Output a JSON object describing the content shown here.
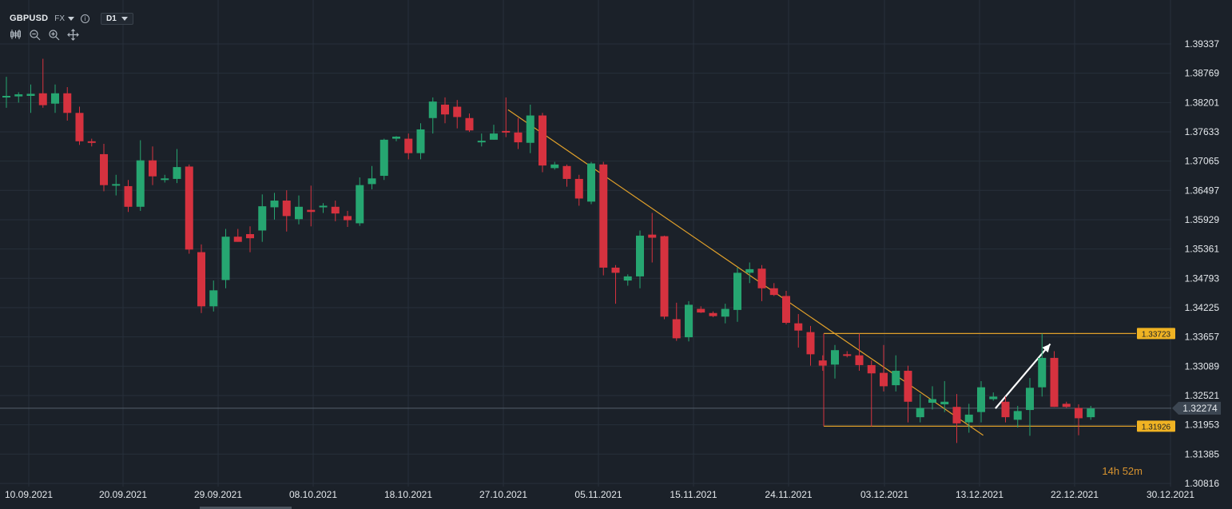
{
  "header": {
    "symbol": "GBPUSD",
    "market": "FX",
    "info_icon": "info-icon",
    "timeframe": "D1"
  },
  "toolbar_icons": [
    "candles-icon",
    "zoom-out-icon",
    "zoom-in-icon",
    "crosshair-icon"
  ],
  "countdown": {
    "hours": "14h",
    "minutes": "52m"
  },
  "colors": {
    "background": "#1b2129",
    "grid": "#27303a",
    "up": "#26a671",
    "down": "#d6323f",
    "trendline": "#e0a02a",
    "level_tag": "#f0b323",
    "current_tag": "#3c4652",
    "arrow": "#ffffff"
  },
  "chart_data": {
    "type": "candlestick",
    "instrument": "GBPUSD",
    "timeframe": "D1",
    "x_labels": [
      "10.09.2021",
      "20.09.2021",
      "29.09.2021",
      "08.10.2021",
      "18.10.2021",
      "27.10.2021",
      "05.11.2021",
      "15.11.2021",
      "24.11.2021",
      "03.12.2021",
      "13.12.2021",
      "22.12.2021",
      "30.12.2021"
    ],
    "y_ticks": [
      "1.39337",
      "1.38769",
      "1.38201",
      "1.37633",
      "1.37065",
      "1.36497",
      "1.35929",
      "1.35361",
      "1.34793",
      "1.34225",
      "1.33657",
      "1.33089",
      "1.32521",
      "1.31953",
      "1.31385",
      "1.30816"
    ],
    "ylim": [
      1.30816,
      1.39337
    ],
    "grid": true,
    "candles": [
      {
        "o": 1.383,
        "h": 1.387,
        "l": 1.381,
        "c": 1.3833
      },
      {
        "o": 1.3832,
        "h": 1.384,
        "l": 1.382,
        "c": 1.3836
      },
      {
        "o": 1.3833,
        "h": 1.3855,
        "l": 1.38,
        "c": 1.3837
      },
      {
        "o": 1.3838,
        "h": 1.3905,
        "l": 1.381,
        "c": 1.3815
      },
      {
        "o": 1.3818,
        "h": 1.3855,
        "l": 1.38,
        "c": 1.3838
      },
      {
        "o": 1.3838,
        "h": 1.385,
        "l": 1.3785,
        "c": 1.38
      },
      {
        "o": 1.38,
        "h": 1.3812,
        "l": 1.3738,
        "c": 1.3745
      },
      {
        "o": 1.3745,
        "h": 1.375,
        "l": 1.3735,
        "c": 1.3742
      },
      {
        "o": 1.372,
        "h": 1.374,
        "l": 1.3648,
        "c": 1.366
      },
      {
        "o": 1.366,
        "h": 1.368,
        "l": 1.364,
        "c": 1.3662
      },
      {
        "o": 1.3658,
        "h": 1.367,
        "l": 1.3608,
        "c": 1.3618
      },
      {
        "o": 1.3618,
        "h": 1.3747,
        "l": 1.361,
        "c": 1.3708
      },
      {
        "o": 1.3708,
        "h": 1.3735,
        "l": 1.366,
        "c": 1.3677
      },
      {
        "o": 1.367,
        "h": 1.368,
        "l": 1.3665,
        "c": 1.3673
      },
      {
        "o": 1.3672,
        "h": 1.373,
        "l": 1.3664,
        "c": 1.3695
      },
      {
        "o": 1.3696,
        "h": 1.37,
        "l": 1.3527,
        "c": 1.3535
      },
      {
        "o": 1.353,
        "h": 1.3545,
        "l": 1.3412,
        "c": 1.3425
      },
      {
        "o": 1.3425,
        "h": 1.3475,
        "l": 1.3415,
        "c": 1.3456
      },
      {
        "o": 1.3476,
        "h": 1.3575,
        "l": 1.346,
        "c": 1.356
      },
      {
        "o": 1.356,
        "h": 1.3575,
        "l": 1.355,
        "c": 1.355
      },
      {
        "o": 1.3565,
        "h": 1.358,
        "l": 1.353,
        "c": 1.3557
      },
      {
        "o": 1.3572,
        "h": 1.3642,
        "l": 1.355,
        "c": 1.3619
      },
      {
        "o": 1.3617,
        "h": 1.3645,
        "l": 1.3593,
        "c": 1.363
      },
      {
        "o": 1.363,
        "h": 1.365,
        "l": 1.357,
        "c": 1.36
      },
      {
        "o": 1.3594,
        "h": 1.364,
        "l": 1.3584,
        "c": 1.3618
      },
      {
        "o": 1.3612,
        "h": 1.3659,
        "l": 1.358,
        "c": 1.3608
      },
      {
        "o": 1.3619,
        "h": 1.3625,
        "l": 1.3606,
        "c": 1.362
      },
      {
        "o": 1.3618,
        "h": 1.363,
        "l": 1.359,
        "c": 1.3605
      },
      {
        "o": 1.36,
        "h": 1.361,
        "l": 1.3579,
        "c": 1.3592
      },
      {
        "o": 1.3586,
        "h": 1.3675,
        "l": 1.3581,
        "c": 1.366
      },
      {
        "o": 1.3662,
        "h": 1.3697,
        "l": 1.3652,
        "c": 1.3673
      },
      {
        "o": 1.3678,
        "h": 1.375,
        "l": 1.367,
        "c": 1.3748
      },
      {
        "o": 1.375,
        "h": 1.3755,
        "l": 1.3745,
        "c": 1.3754
      },
      {
        "o": 1.375,
        "h": 1.376,
        "l": 1.371,
        "c": 1.3722
      },
      {
        "o": 1.3722,
        "h": 1.378,
        "l": 1.371,
        "c": 1.3768
      },
      {
        "o": 1.379,
        "h": 1.383,
        "l": 1.376,
        "c": 1.3822
      },
      {
        "o": 1.3816,
        "h": 1.383,
        "l": 1.378,
        "c": 1.3797
      },
      {
        "o": 1.3812,
        "h": 1.3825,
        "l": 1.377,
        "c": 1.3792
      },
      {
        "o": 1.379,
        "h": 1.3799,
        "l": 1.3763,
        "c": 1.3766
      },
      {
        "o": 1.3743,
        "h": 1.376,
        "l": 1.3735,
        "c": 1.3746
      },
      {
        "o": 1.3748,
        "h": 1.3777,
        "l": 1.3748,
        "c": 1.376
      },
      {
        "o": 1.3765,
        "h": 1.383,
        "l": 1.3753,
        "c": 1.3762
      },
      {
        "o": 1.3762,
        "h": 1.379,
        "l": 1.373,
        "c": 1.3743
      },
      {
        "o": 1.3742,
        "h": 1.3816,
        "l": 1.3722,
        "c": 1.3795
      },
      {
        "o": 1.3795,
        "h": 1.38,
        "l": 1.3685,
        "c": 1.3698
      },
      {
        "o": 1.3693,
        "h": 1.3705,
        "l": 1.369,
        "c": 1.37
      },
      {
        "o": 1.3697,
        "h": 1.37,
        "l": 1.3657,
        "c": 1.3672
      },
      {
        "o": 1.3672,
        "h": 1.368,
        "l": 1.362,
        "c": 1.3634
      },
      {
        "o": 1.3628,
        "h": 1.3705,
        "l": 1.3623,
        "c": 1.3702
      },
      {
        "o": 1.37,
        "h": 1.3705,
        "l": 1.3485,
        "c": 1.35
      },
      {
        "o": 1.35,
        "h": 1.3505,
        "l": 1.343,
        "c": 1.349
      },
      {
        "o": 1.3475,
        "h": 1.3487,
        "l": 1.3465,
        "c": 1.3483
      },
      {
        "o": 1.3483,
        "h": 1.3572,
        "l": 1.346,
        "c": 1.3562
      },
      {
        "o": 1.3564,
        "h": 1.3606,
        "l": 1.351,
        "c": 1.3558
      },
      {
        "o": 1.3561,
        "h": 1.3562,
        "l": 1.34,
        "c": 1.3405
      },
      {
        "o": 1.34,
        "h": 1.3432,
        "l": 1.3358,
        "c": 1.3363
      },
      {
        "o": 1.3365,
        "h": 1.3435,
        "l": 1.3357,
        "c": 1.3428
      },
      {
        "o": 1.342,
        "h": 1.3425,
        "l": 1.3412,
        "c": 1.3413
      },
      {
        "o": 1.3412,
        "h": 1.3415,
        "l": 1.3404,
        "c": 1.3406
      },
      {
        "o": 1.3405,
        "h": 1.343,
        "l": 1.3392,
        "c": 1.342
      },
      {
        "o": 1.3418,
        "h": 1.35,
        "l": 1.3395,
        "c": 1.349
      },
      {
        "o": 1.349,
        "h": 1.351,
        "l": 1.347,
        "c": 1.3497
      },
      {
        "o": 1.3498,
        "h": 1.3505,
        "l": 1.3435,
        "c": 1.346
      },
      {
        "o": 1.346,
        "h": 1.347,
        "l": 1.3445,
        "c": 1.3447
      },
      {
        "o": 1.3445,
        "h": 1.3455,
        "l": 1.339,
        "c": 1.3393
      },
      {
        "o": 1.3392,
        "h": 1.341,
        "l": 1.3345,
        "c": 1.3378
      },
      {
        "o": 1.3375,
        "h": 1.3387,
        "l": 1.331,
        "c": 1.3332
      },
      {
        "o": 1.332,
        "h": 1.333,
        "l": 1.33,
        "c": 1.331
      },
      {
        "o": 1.3312,
        "h": 1.335,
        "l": 1.3285,
        "c": 1.334
      },
      {
        "o": 1.3332,
        "h": 1.3338,
        "l": 1.3326,
        "c": 1.333
      },
      {
        "o": 1.333,
        "h": 1.3372,
        "l": 1.33,
        "c": 1.3311
      },
      {
        "o": 1.3311,
        "h": 1.332,
        "l": 1.3192,
        "c": 1.3295
      },
      {
        "o": 1.3296,
        "h": 1.335,
        "l": 1.326,
        "c": 1.327
      },
      {
        "o": 1.3272,
        "h": 1.333,
        "l": 1.326,
        "c": 1.33
      },
      {
        "o": 1.33,
        "h": 1.331,
        "l": 1.32,
        "c": 1.324
      },
      {
        "o": 1.321,
        "h": 1.3255,
        "l": 1.32,
        "c": 1.3228
      },
      {
        "o": 1.3238,
        "h": 1.327,
        "l": 1.3225,
        "c": 1.3245
      },
      {
        "o": 1.3235,
        "h": 1.328,
        "l": 1.322,
        "c": 1.324
      },
      {
        "o": 1.323,
        "h": 1.3255,
        "l": 1.316,
        "c": 1.3198
      },
      {
        "o": 1.32,
        "h": 1.3236,
        "l": 1.318,
        "c": 1.3215
      },
      {
        "o": 1.322,
        "h": 1.328,
        "l": 1.32,
        "c": 1.3268
      },
      {
        "o": 1.3245,
        "h": 1.3258,
        "l": 1.3242,
        "c": 1.325
      },
      {
        "o": 1.324,
        "h": 1.325,
        "l": 1.32,
        "c": 1.321
      },
      {
        "o": 1.3205,
        "h": 1.3232,
        "l": 1.319,
        "c": 1.3222
      },
      {
        "o": 1.3224,
        "h": 1.3286,
        "l": 1.3174,
        "c": 1.3267
      },
      {
        "o": 1.3268,
        "h": 1.3372,
        "l": 1.325,
        "c": 1.3325
      },
      {
        "o": 1.3325,
        "h": 1.3338,
        "l": 1.323,
        "c": 1.323
      },
      {
        "o": 1.3236,
        "h": 1.324,
        "l": 1.3228,
        "c": 1.323
      },
      {
        "o": 1.3228,
        "h": 1.3235,
        "l": 1.3175,
        "c": 1.3208
      },
      {
        "o": 1.321,
        "h": 1.3232,
        "l": 1.3205,
        "c": 1.3227
      }
    ],
    "resistance_level": "1.33723",
    "support_level": "1.31926",
    "current_price": "1.32274",
    "trendline": {
      "from": {
        "index": 41.5,
        "price": 1.3806
      },
      "to": {
        "index": 80.5,
        "price": 1.3175
      }
    },
    "projection_arrow": {
      "from": {
        "index": 81.5,
        "price": 1.3227
      },
      "to": {
        "index": 86.0,
        "price": 1.3352
      }
    }
  }
}
